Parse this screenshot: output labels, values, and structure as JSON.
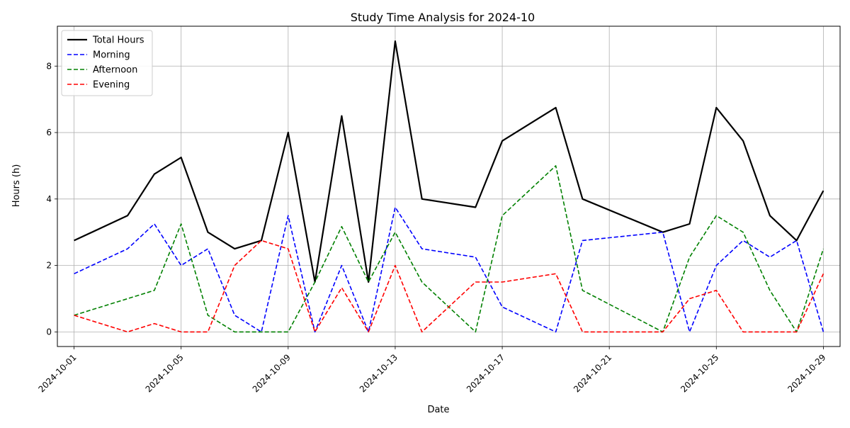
{
  "chart_data": {
    "type": "line",
    "title": "Study Time Analysis for 2024-10",
    "xlabel": "Date",
    "ylabel": "Hours (h)",
    "ylim": [
      -0.44,
      9.2
    ],
    "yticks": [
      0,
      2,
      4,
      6,
      8
    ],
    "xticks": [
      "2024-10-01",
      "2024-10-05",
      "2024-10-09",
      "2024-10-13",
      "2024-10-17",
      "2024-10-21",
      "2024-10-25",
      "2024-10-29"
    ],
    "grid": true,
    "legend_position": "upper-left",
    "x": [
      "2024-10-01",
      "2024-10-03",
      "2024-10-04",
      "2024-10-05",
      "2024-10-06",
      "2024-10-07",
      "2024-10-08",
      "2024-10-09",
      "2024-10-10",
      "2024-10-11",
      "2024-10-12",
      "2024-10-13",
      "2024-10-14",
      "2024-10-16",
      "2024-10-17",
      "2024-10-19",
      "2024-10-20",
      "2024-10-23",
      "2024-10-24",
      "2024-10-25",
      "2024-10-26",
      "2024-10-27",
      "2024-10-28",
      "2024-10-29"
    ],
    "series": [
      {
        "name": "Total Hours",
        "color": "#000000",
        "style": "solid",
        "values": [
          2.75,
          3.5,
          4.75,
          5.25,
          3.0,
          2.5,
          2.75,
          6.0,
          1.5,
          6.5,
          1.5,
          8.75,
          4.0,
          3.75,
          5.75,
          6.75,
          4.0,
          3.0,
          3.25,
          6.75,
          5.75,
          3.5,
          2.75,
          4.25
        ]
      },
      {
        "name": "Morning",
        "color": "#0000ff",
        "style": "dashed",
        "values": [
          1.75,
          2.5,
          3.25,
          2.0,
          2.5,
          0.5,
          0.0,
          3.5,
          0.0,
          2.0,
          0.0,
          3.75,
          2.5,
          2.25,
          0.75,
          0.0,
          2.75,
          3.0,
          0.0,
          2.0,
          2.75,
          2.25,
          2.75,
          0.0
        ]
      },
      {
        "name": "Afternoon",
        "color": "#008000",
        "style": "dashed",
        "values": [
          0.5,
          1.0,
          1.25,
          3.25,
          0.5,
          0.0,
          0.0,
          0.0,
          1.5,
          3.17,
          1.5,
          3.0,
          1.5,
          0.0,
          3.5,
          5.0,
          1.25,
          0.0,
          2.25,
          3.5,
          3.0,
          1.25,
          0.0,
          2.5
        ]
      },
      {
        "name": "Evening",
        "color": "#ff0000",
        "style": "dashed",
        "values": [
          0.5,
          0.0,
          0.25,
          0.0,
          0.0,
          2.0,
          2.75,
          2.5,
          0.0,
          1.33,
          0.0,
          2.0,
          0.0,
          1.5,
          1.5,
          1.75,
          0.0,
          0.0,
          1.0,
          1.25,
          0.0,
          0.0,
          0.0,
          1.75
        ]
      }
    ]
  }
}
